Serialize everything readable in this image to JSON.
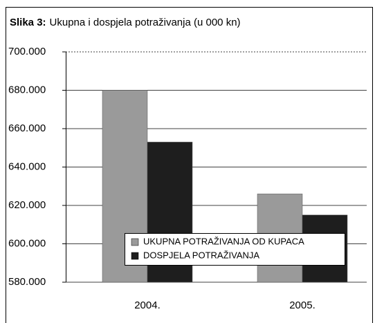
{
  "chart_data": {
    "type": "bar",
    "title_label": "Slika 3:",
    "title": "Ukupna i dospjela potraživanja (u 000 kn)",
    "categories": [
      "2004.",
      "2005."
    ],
    "series": [
      {
        "name": "UKUPNA POTRAŽIVANJA OD KUPACA",
        "color": "#9a9a9a",
        "values": [
          680000,
          626000
        ]
      },
      {
        "name": "DOSPJELA POTRAŽIVANJA",
        "color": "#1e1e1e",
        "values": [
          653000,
          615000
        ]
      }
    ],
    "ylim": [
      580000,
      700000
    ],
    "yticks": [
      {
        "value": 580000,
        "label": "580.000"
      },
      {
        "value": 600000,
        "label": "600.000"
      },
      {
        "value": 620000,
        "label": "620.000"
      },
      {
        "value": 640000,
        "label": "640.000"
      },
      {
        "value": 660000,
        "label": "660.000"
      },
      {
        "value": 680000,
        "label": "680.000"
      },
      {
        "value": 700000,
        "label": "700.000"
      }
    ],
    "grid": true
  }
}
